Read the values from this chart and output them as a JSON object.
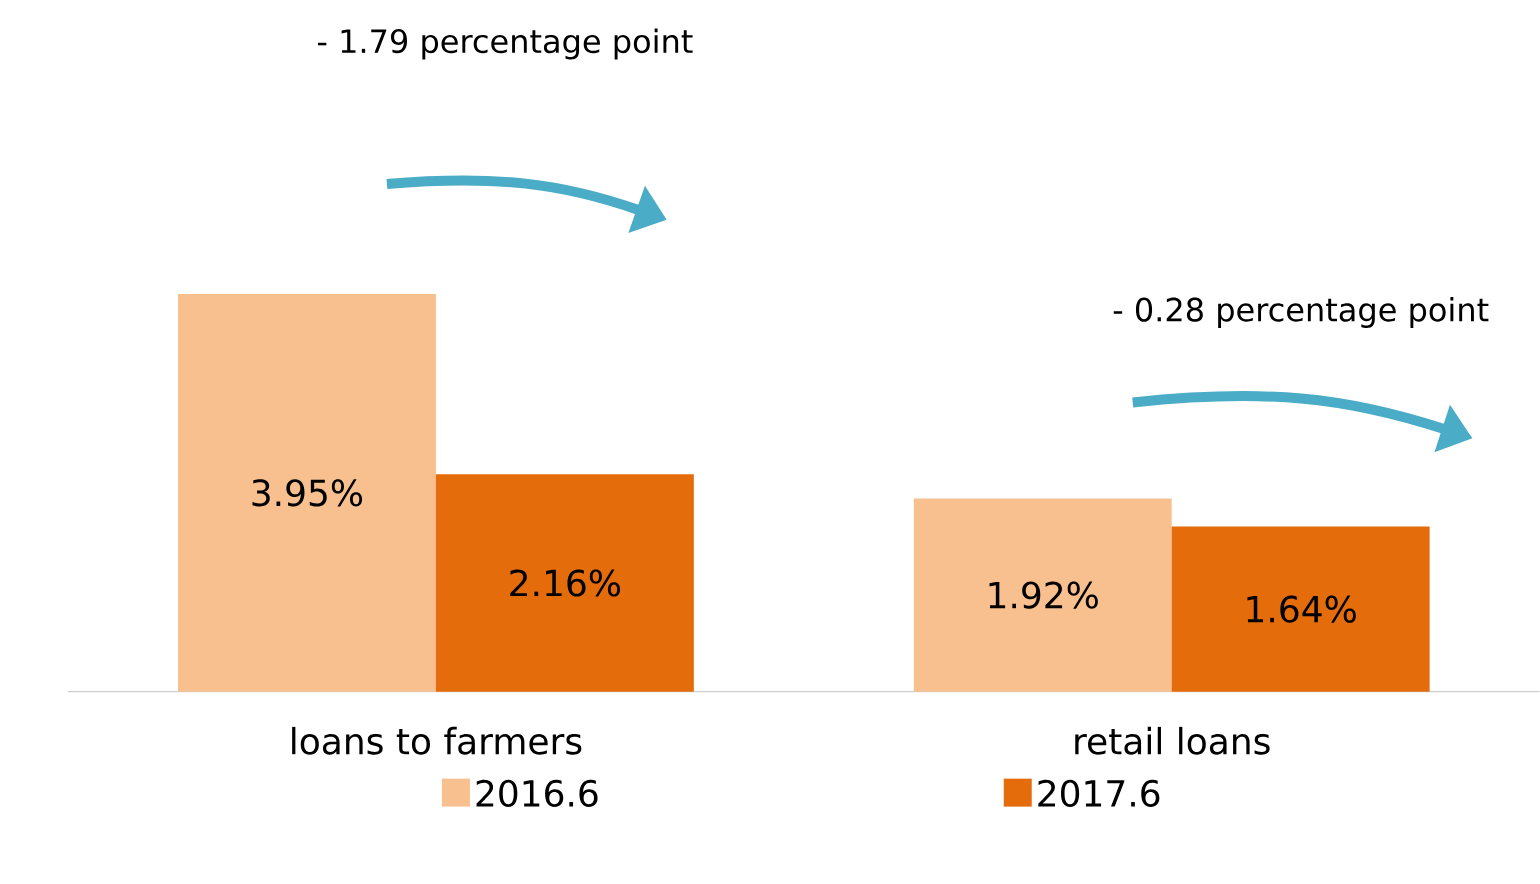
{
  "chart_data": {
    "type": "bar",
    "categories": [
      "loans to farmers",
      "retail loans"
    ],
    "series": [
      {
        "name": "2016.6",
        "color": "#f9c08f",
        "values": [
          3.95,
          1.92
        ],
        "value_labels": [
          "3.95%",
          "1.92%"
        ]
      },
      {
        "name": "2017.6",
        "color": "#e46c0a",
        "values": [
          2.16,
          1.64
        ],
        "value_labels": [
          "2.16%",
          "1.64%"
        ]
      }
    ],
    "annotations": [
      "- 1.79 percentage point",
      "- 0.28 percentage point"
    ],
    "legend": "bottom"
  }
}
